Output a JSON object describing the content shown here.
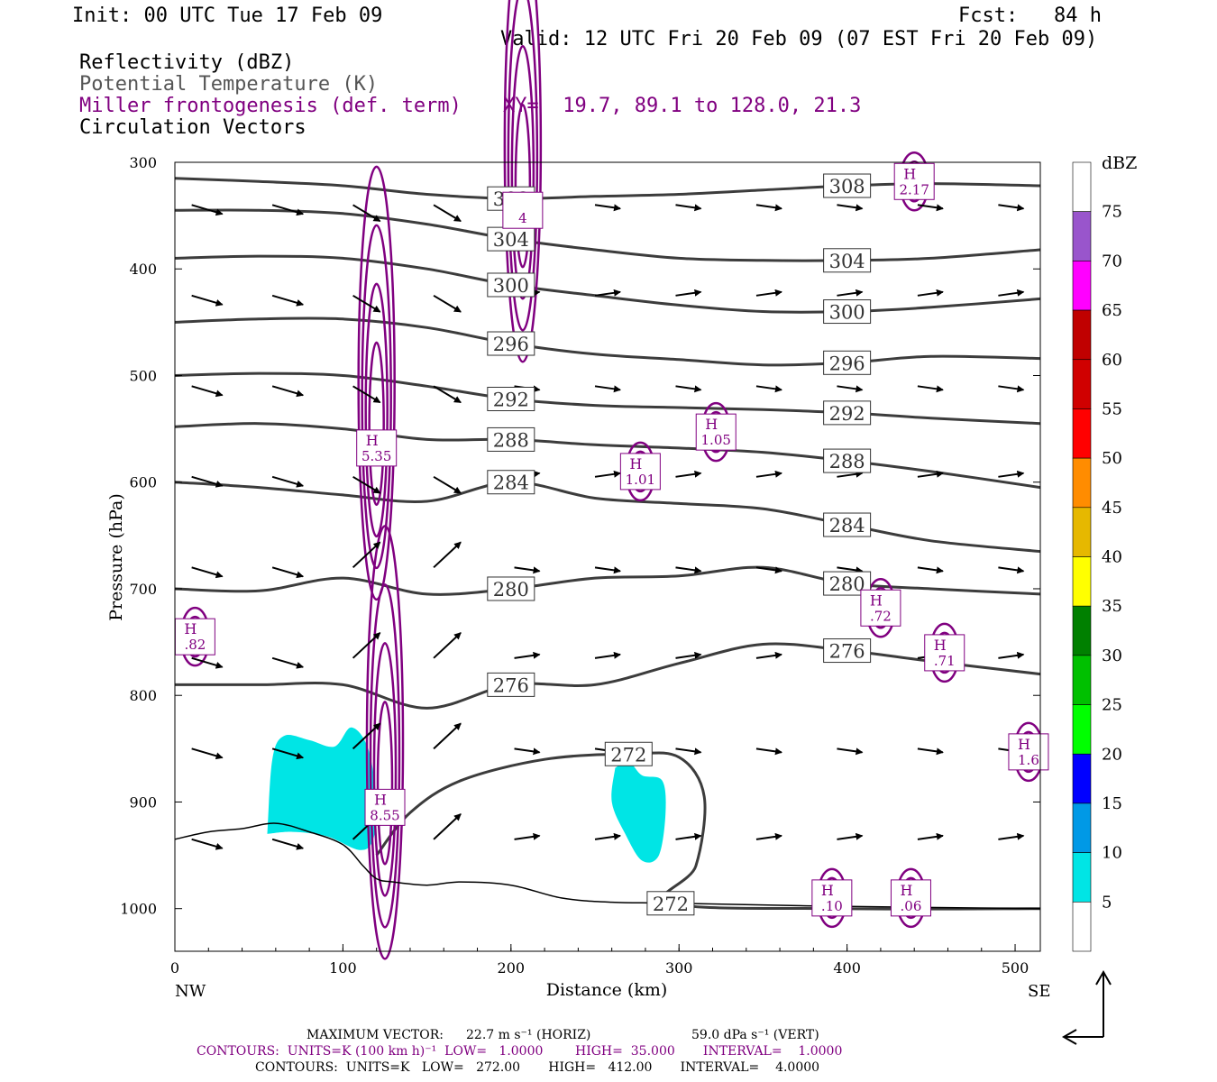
{
  "header": {
    "init": "Init: 00 UTC Tue 17 Feb 09",
    "fcst": "Fcst:   84 h",
    "valid": "Valid: 12 UTC Fri 20 Feb 09 (07 EST Fri 20 Feb 09)",
    "fields": [
      {
        "label": "Reflectivity (dBZ)",
        "color": "#000000"
      },
      {
        "label": "Potential Temperature (K)",
        "color": "#555555"
      },
      {
        "label": "Miller frontogenesis (def. term)",
        "color": "#800080"
      },
      {
        "label": "Circulation Vectors",
        "color": "#000000"
      }
    ],
    "xy": "XY=  19.7, 89.1 to 128.0, 21.3"
  },
  "chart_data": {
    "type": "cross-section",
    "xlabel": "Distance (km)",
    "ylabel": "Pressure (hPa)",
    "xlim": [
      0,
      515
    ],
    "ylim": [
      1040,
      300
    ],
    "x_ticks": [
      "0",
      "100",
      "200",
      "300",
      "400",
      "500"
    ],
    "y_ticks": [
      "300",
      "400",
      "500",
      "600",
      "700",
      "800",
      "900",
      "1000"
    ],
    "x_tick_values": [
      0,
      100,
      200,
      300,
      400,
      500
    ],
    "y_tick_values": [
      300,
      400,
      500,
      600,
      700,
      800,
      900,
      1000
    ],
    "left_end_label": "NW",
    "right_end_label": "SE",
    "theta_contours": [
      {
        "value": 308,
        "label": "308",
        "points": [
          [
            0,
            315
          ],
          [
            50,
            318
          ],
          [
            100,
            322
          ],
          [
            150,
            330
          ],
          [
            200,
            334
          ],
          [
            250,
            332
          ],
          [
            300,
            330
          ],
          [
            350,
            326
          ],
          [
            400,
            322
          ],
          [
            450,
            320
          ],
          [
            515,
            322
          ]
        ]
      },
      {
        "value": 304,
        "label": "304",
        "points": [
          [
            0,
            345
          ],
          [
            50,
            345
          ],
          [
            100,
            348
          ],
          [
            150,
            358
          ],
          [
            200,
            372
          ],
          [
            250,
            382
          ],
          [
            300,
            390
          ],
          [
            350,
            392
          ],
          [
            400,
            392
          ],
          [
            450,
            390
          ],
          [
            515,
            382
          ]
        ]
      },
      {
        "value": 300,
        "label": "300",
        "points": [
          [
            0,
            390
          ],
          [
            50,
            388
          ],
          [
            100,
            390
          ],
          [
            150,
            400
          ],
          [
            200,
            415
          ],
          [
            250,
            425
          ],
          [
            300,
            434
          ],
          [
            350,
            440
          ],
          [
            400,
            440
          ],
          [
            450,
            436
          ],
          [
            515,
            428
          ]
        ]
      },
      {
        "value": 296,
        "label": "296",
        "points": [
          [
            0,
            450
          ],
          [
            50,
            447
          ],
          [
            100,
            447
          ],
          [
            150,
            455
          ],
          [
            200,
            470
          ],
          [
            250,
            480
          ],
          [
            300,
            485
          ],
          [
            350,
            490
          ],
          [
            400,
            488
          ],
          [
            450,
            482
          ],
          [
            515,
            484
          ]
        ]
      },
      {
        "value": 292,
        "label": "292",
        "points": [
          [
            0,
            500
          ],
          [
            50,
            498
          ],
          [
            100,
            500
          ],
          [
            150,
            510
          ],
          [
            200,
            522
          ],
          [
            250,
            528
          ],
          [
            300,
            530
          ],
          [
            350,
            532
          ],
          [
            400,
            535
          ],
          [
            450,
            540
          ],
          [
            515,
            545
          ]
        ]
      },
      {
        "value": 288,
        "label": "288",
        "points": [
          [
            0,
            548
          ],
          [
            50,
            545
          ],
          [
            100,
            550
          ],
          [
            150,
            560
          ],
          [
            200,
            560
          ],
          [
            250,
            565
          ],
          [
            300,
            568
          ],
          [
            350,
            572
          ],
          [
            400,
            580
          ],
          [
            450,
            590
          ],
          [
            515,
            605
          ]
        ]
      },
      {
        "value": 284,
        "label": "284",
        "points": [
          [
            0,
            600
          ],
          [
            50,
            605
          ],
          [
            100,
            612
          ],
          [
            150,
            618
          ],
          [
            200,
            600
          ],
          [
            250,
            615
          ],
          [
            300,
            620
          ],
          [
            350,
            625
          ],
          [
            400,
            640
          ],
          [
            450,
            655
          ],
          [
            515,
            665
          ]
        ]
      },
      {
        "value": 280,
        "label": "280",
        "points": [
          [
            0,
            700
          ],
          [
            50,
            702
          ],
          [
            100,
            690
          ],
          [
            150,
            705
          ],
          [
            200,
            700
          ],
          [
            250,
            690
          ],
          [
            300,
            688
          ],
          [
            350,
            680
          ],
          [
            400,
            695
          ],
          [
            450,
            700
          ],
          [
            515,
            705
          ]
        ]
      },
      {
        "value": 276,
        "label": "276",
        "points": [
          [
            0,
            790
          ],
          [
            50,
            790
          ],
          [
            100,
            790
          ],
          [
            150,
            812
          ],
          [
            200,
            790
          ],
          [
            250,
            790
          ],
          [
            300,
            770
          ],
          [
            350,
            752
          ],
          [
            400,
            758
          ],
          [
            450,
            768
          ],
          [
            515,
            780
          ]
        ]
      },
      {
        "value": 272,
        "label": "272",
        "points": [
          [
            120,
            950
          ],
          [
            140,
            910
          ],
          [
            170,
            880
          ],
          [
            220,
            860
          ],
          [
            270,
            855
          ],
          [
            300,
            858
          ],
          [
            315,
            895
          ],
          [
            310,
            960
          ],
          [
            295,
            995
          ],
          [
            400,
            1000
          ],
          [
            515,
            1000
          ]
        ]
      }
    ],
    "reflectivity_areas": [
      {
        "label": "5-10 dBZ",
        "color": "#00e5e5",
        "points": [
          [
            55,
            930
          ],
          [
            58,
            860
          ],
          [
            65,
            838
          ],
          [
            80,
            842
          ],
          [
            95,
            848
          ],
          [
            105,
            830
          ],
          [
            115,
            850
          ],
          [
            120,
            900
          ],
          [
            118,
            935
          ],
          [
            110,
            945
          ],
          [
            90,
            932
          ],
          [
            70,
            928
          ]
        ]
      },
      {
        "label": "5-10 dBZ",
        "color": "#00e5e5",
        "points": [
          [
            262,
            868
          ],
          [
            270,
            862
          ],
          [
            278,
            875
          ],
          [
            290,
            880
          ],
          [
            292,
            910
          ],
          [
            288,
            950
          ],
          [
            278,
            955
          ],
          [
            268,
            930
          ],
          [
            260,
            900
          ]
        ]
      }
    ],
    "frontogenesis_maxima": [
      {
        "label": "H",
        "value": "5.35",
        "x": 120,
        "p": 568
      },
      {
        "label": "H",
        "value": "8.55",
        "x": 125,
        "p": 905
      },
      {
        "label": "H",
        "value": "1.01",
        "x": 277,
        "p": 590
      },
      {
        "label": "H",
        "value": "1.05",
        "x": 322,
        "p": 553
      },
      {
        "label": "H",
        "value": ".82",
        "x": 12,
        "p": 745
      },
      {
        "label": "H",
        "value": ".72",
        "x": 420,
        "p": 718
      },
      {
        "label": "H",
        "value": ".71",
        "x": 458,
        "p": 760
      },
      {
        "label": "H",
        "value": "2.17",
        "x": 440,
        "p": 318
      },
      {
        "label": "H",
        "value": ".10",
        "x": 391,
        "p": 990
      },
      {
        "label": "H",
        "value": ".06",
        "x": 438,
        "p": 990
      },
      {
        "label": "H",
        "value": "1.6",
        "x": 508,
        "p": 853
      },
      {
        "label": "",
        "value": "4",
        "x": 207,
        "p": 345
      }
    ],
    "vectors_description": "circulation vectors, mostly west-to-east with strong ascent near 100-180 km"
  },
  "colorbar": {
    "title": "dBZ",
    "levels": [
      "75",
      "70",
      "65",
      "60",
      "55",
      "50",
      "45",
      "40",
      "35",
      "30",
      "25",
      "20",
      "15",
      "10",
      "5"
    ],
    "colors": [
      "#ffffff",
      "#9955cc",
      "#ff00ff",
      "#c00000",
      "#d00000",
      "#ff0000",
      "#ff8c00",
      "#e6b800",
      "#ffff00",
      "#008000",
      "#00c000",
      "#00ff00",
      "#0000ff",
      "#0099e6",
      "#00e5e5",
      "#ffffff"
    ]
  },
  "footer": {
    "max_vector_label": "MAXIMUM VECTOR:",
    "max_vector_h": "22.7 m s⁻¹ (HORIZ)",
    "max_vector_v": "59.0 dPa s⁻¹ (VERT)",
    "contours1": "CONTOURS:  UNITS=K (100 km h)⁻¹  LOW=   1.0000        HIGH=  35.000       INTERVAL=    1.0000",
    "contours2": "CONTOURS:  UNITS=K   LOW=   272.00       HIGH=   412.00       INTERVAL=    4.0000",
    "contours1_color": "#800080",
    "contours2_color": "#000000"
  }
}
